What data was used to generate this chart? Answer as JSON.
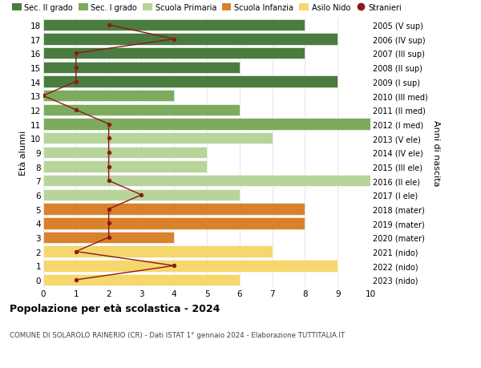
{
  "ages": [
    18,
    17,
    16,
    15,
    14,
    13,
    12,
    11,
    10,
    9,
    8,
    7,
    6,
    5,
    4,
    3,
    2,
    1,
    0
  ],
  "years": [
    "2005 (V sup)",
    "2006 (IV sup)",
    "2007 (III sup)",
    "2008 (II sup)",
    "2009 (I sup)",
    "2010 (III med)",
    "2011 (II med)",
    "2012 (I med)",
    "2013 (V ele)",
    "2014 (IV ele)",
    "2015 (III ele)",
    "2016 (II ele)",
    "2017 (I ele)",
    "2018 (mater)",
    "2019 (mater)",
    "2020 (mater)",
    "2021 (nido)",
    "2022 (nido)",
    "2023 (nido)"
  ],
  "bar_values": [
    8,
    9,
    8,
    6,
    9,
    4,
    6,
    10,
    7,
    5,
    5,
    10,
    6,
    8,
    8,
    4,
    7,
    9,
    6
  ],
  "bar_colors": [
    "#4a7c3f",
    "#4a7c3f",
    "#4a7c3f",
    "#4a7c3f",
    "#4a7c3f",
    "#7dab5e",
    "#7dab5e",
    "#7dab5e",
    "#b8d49a",
    "#b8d49a",
    "#b8d49a",
    "#b8d49a",
    "#b8d49a",
    "#d9822b",
    "#d9822b",
    "#d9822b",
    "#f5d76e",
    "#f5d76e",
    "#f5d76e"
  ],
  "stranieri_values": [
    2,
    4,
    1,
    1,
    1,
    0,
    1,
    2,
    2,
    2,
    2,
    2,
    3,
    2,
    2,
    2,
    1,
    4,
    1
  ],
  "stranieri_color": "#8b1a1a",
  "legend_labels": [
    "Sec. II grado",
    "Sec. I grado",
    "Scuola Primaria",
    "Scuola Infanzia",
    "Asilo Nido",
    "Stranieri"
  ],
  "legend_colors": [
    "#4a7c3f",
    "#7dab5e",
    "#b8d49a",
    "#d9822b",
    "#f5d76e",
    "#8b1a1a"
  ],
  "title": "Popolazione per età scolastica - 2024",
  "subtitle": "COMUNE DI SOLAROLO RAINERIO (CR) - Dati ISTAT 1° gennaio 2024 - Elaborazione TUTTITALIA.IT",
  "ylabel_left": "Età alunni",
  "ylabel_right": "Anni di nascita",
  "xlim": [
    0,
    10
  ],
  "bg_color": "#ffffff",
  "grid_color": "#dddddd"
}
